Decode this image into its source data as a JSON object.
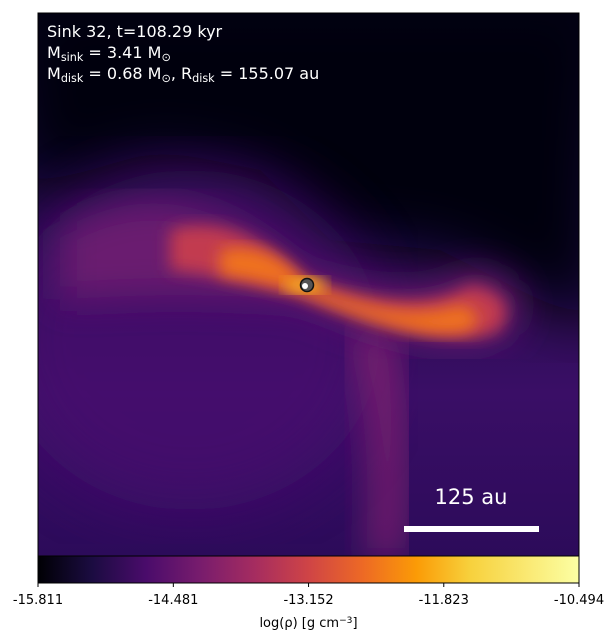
{
  "chart_data": {
    "type": "image",
    "annotations": [
      [
        "Sink 32, t=108.29 kyr"
      ],
      [
        "M",
        {
          "sub": "sink"
        },
        " = 3.41 ",
        "M",
        {
          "sub": "⊙"
        }
      ],
      [
        "M",
        {
          "sub": "disk"
        },
        " = 0.68 ",
        "M",
        {
          "sub": "⊙"
        },
        ", ",
        "R",
        {
          "sub": "disk"
        },
        " = 155.07 au"
      ]
    ],
    "scale_bar": "125 au",
    "colorbar": {
      "cmap": "inferno",
      "clim": [
        -15.811,
        -10.494
      ],
      "ticks": [
        -15.811,
        -14.481,
        -13.152,
        -11.823,
        -10.494
      ],
      "label": [
        "log(ρ) [g cm",
        {
          "sup": "−3"
        },
        "]"
      ]
    }
  }
}
